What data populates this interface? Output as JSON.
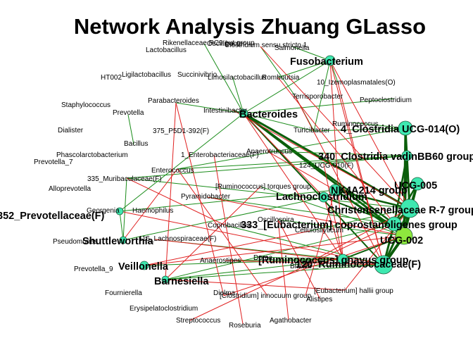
{
  "title": "Network Analysis Zhuang GLasso",
  "colors": {
    "positive_edge": "#1a8c1a",
    "negative_edge": "#e02020",
    "strong_edge": "#0b5e0b",
    "node_fill_teal": "#3ee8b0",
    "node_fill_lime": "#8ee83e",
    "node_stroke": "#1f5f3f"
  },
  "labels": {
    "fusobacterium": "Fusobacterium",
    "bacteroides": "Bacteroides",
    "clostridia_014": "4_Clostridia UCG-014(O)",
    "clostridia_vadin": "340_Clostridia vadinBB60 group(O)",
    "ucg005": "UCG-005",
    "nk4a214": "NK4A214 group",
    "lachnoclostridium": "Lachnoclostridium",
    "christensenellaceae": "Christensenellaceae R-7 group",
    "eubacterium_copro": "333_[Eubacterium] coprostanoligenes group",
    "ucg002": "UCG-002",
    "ruminococcus_gnavus": "[Ruminococcus] gnavus group",
    "ruminococcaceae120": "120_Ruminococcaceae(F)",
    "prevotellaceae352": "352_Prevotellaceae(F)",
    "shuttleworthia": "Shuttleworthia",
    "veillonella": "Veillonella",
    "barnesiella": "Barnesiella",
    "rikenellaceae": "Rikenellaceae RC9 gut group",
    "oscillibacter": "Oscillibacter",
    "clostridium_ss": "Clostridium sensu stricto 1",
    "lactobacillus": "Lactobacillus",
    "salmonella": "Salmonella",
    "ht002": "HT002",
    "ligilactobacillus": "Ligilactobacillus",
    "succinivibrio": "Succinivibrio",
    "limosilactobacillus": "Limosilactobacillus",
    "romboutsia": "Romboutsia",
    "izemoplasmatales": "10_Izemoplasmatales(O)",
    "staphylococcus": "Staphylococcus",
    "parabacteroides": "Parabacteroides",
    "terrisporobacter": "Terrisporobacter",
    "peptoclostridium": "Peptoclostridium",
    "prevotella": "Prevotella",
    "intestinibacter": "Intestinibacter",
    "ruminococcus": "Ruminococcus",
    "dialister": "Dialister",
    "p5d1": "375_P5D1-392(F)",
    "turicibacter": "Turicibacter",
    "bacillus": "Bacillus",
    "phascolarctobacterium": "Phascolarctobacterium",
    "enterobacteriaceae": "1_Enterobacteriaceae(F)",
    "anaerotruncus": "Anaerotruncus",
    "prevotella7": "Prevotella_7",
    "ucg010": "124_UCG-010(F)",
    "enterococcus": "Enterococcus",
    "muribaculaceae": "335_Muribaculaceae(F)",
    "alloprevotella": "Alloprevotella",
    "ruminococcus_torques": "[Ruminococcus] torques group",
    "pyramidobacter": "Pyramidobacter",
    "georgenia": "Georgenia",
    "haemophilus": "Haemophilus",
    "oscillospira": "Oscillospira",
    "coprobacillus": "Coprobacillus",
    "cellulosilyticum": "Cellulosilyticum",
    "pseudomonas": "Pseudomonas",
    "lachnospiraceae": "116_Lachnospiraceae(F)",
    "anaerostipes": "Anaerostipes",
    "dorea": "Dorea",
    "blautia": "Blautia",
    "prevotella9": "Prevotella_9",
    "fournierella": "Fournierella",
    "dielma": "Dielma",
    "clostridium_innocuum": "[Clostridium] innocuum group",
    "eubacterium_hallii": "[Eubacterium] hallii group",
    "alistipes": "Alistipes",
    "erysipelatoclostridium": "Erysipelatoclostridium",
    "streptococcus": "Streptococcus",
    "agathobacter": "Agathobacter",
    "roseburia": "Roseburia"
  }
}
